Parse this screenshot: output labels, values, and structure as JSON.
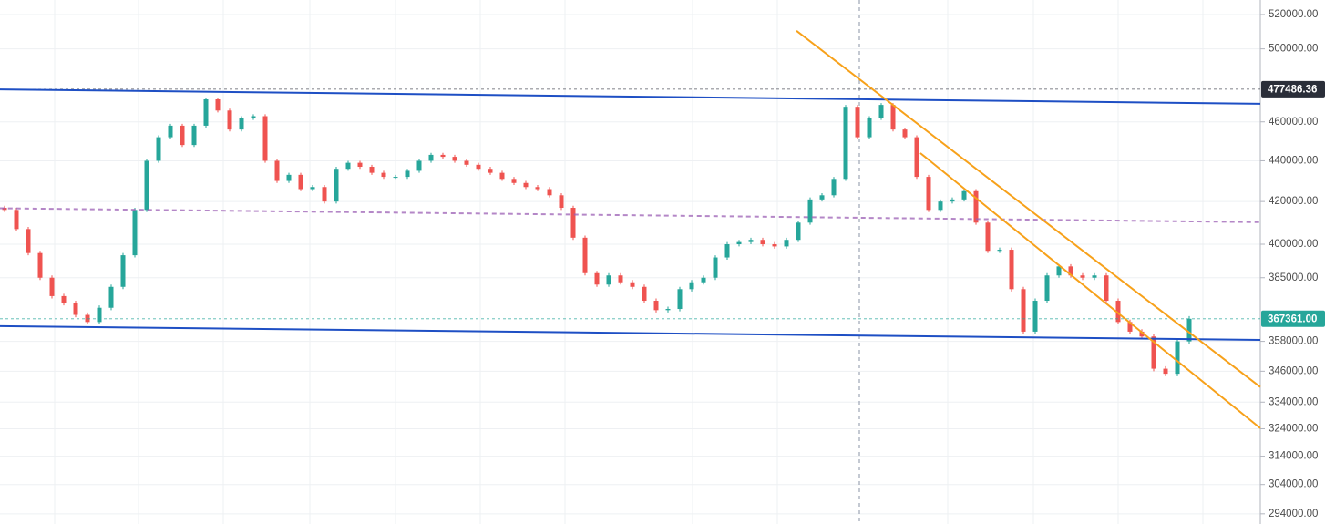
{
  "chart_data": {
    "type": "candlestick",
    "log_scale": true,
    "grid": true,
    "ylim": [
      290600,
      528700
    ],
    "yticks": [
      {
        "value": 520000,
        "label": "520000.00"
      },
      {
        "value": 500000,
        "label": "500000.00"
      },
      {
        "value": 460000,
        "label": "460000.00"
      },
      {
        "value": 440000,
        "label": "440000.00"
      },
      {
        "value": 420000,
        "label": "420000.00"
      },
      {
        "value": 400000,
        "label": "400000.00"
      },
      {
        "value": 385000,
        "label": "385000.00"
      },
      {
        "value": 358000,
        "label": "358000.00"
      },
      {
        "value": 346000,
        "label": "346000.00"
      },
      {
        "value": 334000,
        "label": "334000.00"
      },
      {
        "value": 324000,
        "label": "324000.00"
      },
      {
        "value": 314000,
        "label": "314000.00"
      },
      {
        "value": 304000,
        "label": "304000.00"
      },
      {
        "value": 294000,
        "label": "294000.00"
      }
    ],
    "up_color": "#26a69a",
    "down_color": "#ef5350",
    "open": [
      417000,
      416000,
      407000,
      396000,
      385000,
      377000,
      374000,
      369000,
      366000,
      372000,
      381000,
      395000,
      416000,
      440000,
      452000,
      458000,
      448000,
      458000,
      472000,
      466000,
      456000,
      462000,
      463000,
      440000,
      430000,
      433000,
      426000,
      427000,
      420000,
      436000,
      439000,
      437000,
      434000,
      432000,
      432000,
      435000,
      440000,
      443000,
      442000,
      440000,
      438000,
      436000,
      434000,
      431000,
      429000,
      427000,
      426000,
      423000,
      417000,
      403000,
      387000,
      382000,
      386000,
      383000,
      381000,
      375000,
      371000,
      371500,
      380000,
      383000,
      385000,
      394000,
      400000,
      401000,
      402000,
      400000,
      399000,
      402000,
      410000,
      421000,
      423000,
      431000,
      468000,
      452000,
      462000,
      469000,
      456000,
      452000,
      432000,
      416000,
      420000,
      421000,
      425000,
      410000,
      397000,
      397500,
      380000,
      362000,
      375000,
      386000,
      390000,
      386000,
      385000,
      386000,
      375000,
      366000,
      362000,
      360000,
      347000,
      345000,
      358000
    ],
    "high": [
      418000,
      417000,
      408000,
      397000,
      386000,
      378000,
      375000,
      370000,
      373000,
      382000,
      396000,
      417000,
      441000,
      453000,
      459000,
      459000,
      459000,
      473000,
      473000,
      467000,
      463000,
      464000,
      464000,
      441000,
      434000,
      434000,
      428000,
      428000,
      437000,
      440000,
      440000,
      438000,
      435000,
      433000,
      436000,
      441000,
      444000,
      444000,
      443000,
      441000,
      439000,
      437000,
      435000,
      432000,
      430000,
      428000,
      427000,
      424000,
      418000,
      404000,
      388000,
      387000,
      387000,
      384000,
      382000,
      376000,
      372500,
      381000,
      384000,
      386000,
      395000,
      401000,
      402000,
      403000,
      403000,
      401000,
      403000,
      411000,
      422000,
      424000,
      432000,
      469000,
      469000,
      463000,
      470000,
      470000,
      457000,
      453000,
      433000,
      421000,
      422000,
      426000,
      426000,
      411000,
      398500,
      398500,
      381000,
      376000,
      387000,
      391000,
      391000,
      387000,
      387000,
      387000,
      376000,
      367000,
      363000,
      361000,
      348000,
      359000,
      368500
    ],
    "low": [
      415000,
      406000,
      395000,
      384000,
      376000,
      373000,
      368000,
      365000,
      365000,
      371000,
      380000,
      394000,
      415000,
      439000,
      451000,
      447000,
      447000,
      457000,
      465000,
      455000,
      455000,
      461000,
      439000,
      429000,
      429000,
      425000,
      425000,
      419000,
      419000,
      435000,
      436000,
      433000,
      431000,
      431000,
      431000,
      434000,
      439000,
      441000,
      439000,
      437000,
      435000,
      433000,
      430000,
      428000,
      426000,
      425000,
      422000,
      416000,
      402000,
      386000,
      381000,
      381000,
      382000,
      380000,
      374000,
      370000,
      370000,
      370500,
      379000,
      382000,
      384000,
      393000,
      399000,
      400000,
      399000,
      398000,
      398000,
      401000,
      409000,
      420000,
      422000,
      430000,
      451000,
      451000,
      461000,
      455000,
      451000,
      431000,
      415000,
      415000,
      419000,
      420000,
      409000,
      396000,
      396000,
      379000,
      361000,
      361000,
      374000,
      385000,
      385000,
      384000,
      384000,
      374000,
      365000,
      361000,
      359000,
      346000,
      344000,
      344000,
      357000
    ],
    "close": [
      416000,
      407000,
      396000,
      385000,
      377000,
      374000,
      369000,
      366000,
      372000,
      381000,
      395000,
      416000,
      440000,
      452000,
      458000,
      448000,
      458000,
      472000,
      466000,
      456000,
      462000,
      463000,
      440000,
      430000,
      433000,
      426000,
      427000,
      420000,
      436000,
      439000,
      437000,
      434000,
      432000,
      432000,
      435000,
      440000,
      443000,
      442000,
      440000,
      438000,
      436000,
      434000,
      431000,
      429000,
      427000,
      426000,
      423000,
      417000,
      403000,
      387000,
      382000,
      386000,
      383000,
      381000,
      375000,
      371000,
      371500,
      380000,
      383000,
      385000,
      394000,
      400000,
      401000,
      402000,
      400000,
      399000,
      402000,
      410000,
      421000,
      423000,
      431000,
      468000,
      452000,
      462000,
      469000,
      456000,
      452000,
      432000,
      416000,
      420000,
      421000,
      425000,
      410000,
      397000,
      397500,
      380000,
      362000,
      375000,
      386000,
      390000,
      386000,
      385000,
      386000,
      375000,
      366000,
      362000,
      360000,
      347000,
      345000,
      358000,
      367361
    ],
    "lines": [
      {
        "color": "#1e4fc4",
        "dashed": false,
        "x": [
          -0.4,
          106
        ],
        "y": [
          477400,
          469600
        ]
      },
      {
        "color": "#1e4fc4",
        "dashed": false,
        "x": [
          -0.4,
          106
        ],
        "y": [
          364300,
          358600
        ]
      },
      {
        "color": "#9c5fb5",
        "dashed": true,
        "x": [
          -0.4,
          106
        ],
        "y": [
          416800,
          410200
        ]
      },
      {
        "color": "#f7a11a",
        "dashed": false,
        "x": [
          66.85,
          106
        ],
        "y": [
          510400,
          339800
        ]
      },
      {
        "color": "#f7a11a",
        "dashed": false,
        "x": [
          77.3,
          106
        ],
        "y": [
          443900,
          324200
        ]
      }
    ],
    "price_labels": [
      {
        "value": 477486.36,
        "label": "477486.36",
        "color": "#2a2e39"
      },
      {
        "value": 367361,
        "label": "367361.00",
        "color": "#26a69a"
      }
    ]
  }
}
